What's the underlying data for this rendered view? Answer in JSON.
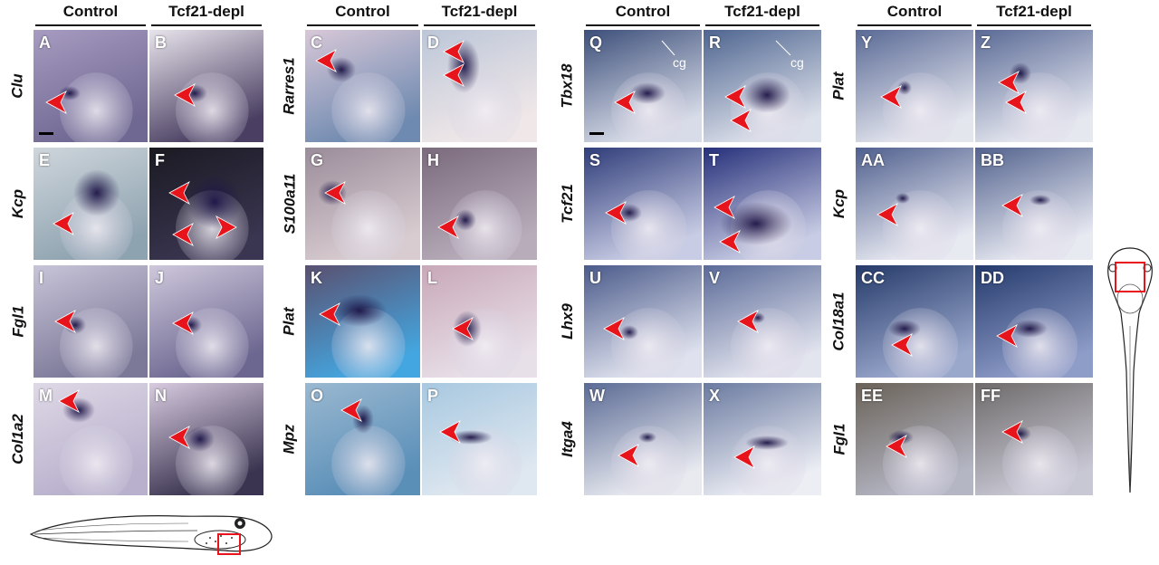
{
  "columns": {
    "g1": [
      "Control",
      "Tcf21-depl"
    ],
    "g2": [
      "Control",
      "Tcf21-depl"
    ],
    "g3": [
      "Control",
      "Tcf21-depl"
    ],
    "g4": [
      "Control",
      "Tcf21-depl"
    ]
  },
  "rows": {
    "g1": [
      "Clu",
      "Kcp",
      "Fgl1",
      "Col1a2"
    ],
    "g2": [
      "Rarres1",
      "S100a11",
      "Plat",
      "Mpz"
    ],
    "g3": [
      "Tbx18",
      "Tcf21",
      "Lhx9",
      "Itga4"
    ],
    "g4": [
      "Plat",
      "Kcp",
      "Col18a1",
      "Fgl1"
    ]
  },
  "panels": {
    "g1": [
      "A",
      "B",
      "E",
      "F",
      "I",
      "J",
      "M",
      "N"
    ],
    "g2": [
      "C",
      "D",
      "G",
      "H",
      "K",
      "L",
      "O",
      "P"
    ],
    "g3": [
      "Q",
      "R",
      "S",
      "T",
      "U",
      "V",
      "W",
      "X"
    ],
    "g4": [
      "Y",
      "Z",
      "AA",
      "BB",
      "CC",
      "DD",
      "EE",
      "FF"
    ]
  },
  "annotations": {
    "cg_q": "cg",
    "cg_r": "cg"
  },
  "colors": {
    "arrow": "#e8141c",
    "box": "#e8141c",
    "stain": "#1c1446"
  }
}
